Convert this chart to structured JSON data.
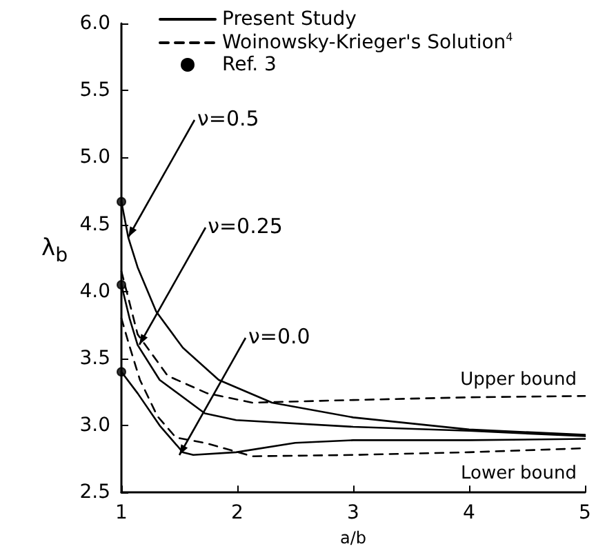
{
  "chart_data": {
    "type": "line",
    "xlabel": "a/b",
    "ylabel": "λ$_{b}$",
    "xlim": [
      1,
      5
    ],
    "xticks": [
      1,
      2,
      3,
      4,
      5
    ],
    "ylim": [
      2.5,
      6
    ],
    "yticks": [
      2.5,
      {
        "value": 3,
        "label": "3.0"
      },
      3.5,
      {
        "value": 4,
        "label": "4.0"
      },
      4.5,
      {
        "value": 5,
        "label": "5.0"
      },
      5.5,
      {
        "value": 6,
        "label": "6.0"
      }
    ],
    "grid": false,
    "legend": "top",
    "series": [
      {
        "name": "Present Study",
        "color": "#000000",
        "line_style": "solid",
        "marker": "none",
        "x": [
          1,
          1.06,
          1.14,
          1.3,
          1.53,
          1.84,
          2.3,
          3,
          4,
          5
        ],
        "values": [
          4.67,
          4.4,
          4.18,
          3.85,
          3.58,
          3.34,
          3.17,
          3.06,
          2.97,
          2.93
        ]
      },
      {
        "color": "#000000",
        "line_style": "solid",
        "marker": "none",
        "x": [
          1,
          1.07,
          1.14,
          1.33,
          1.72,
          1.99,
          3,
          4,
          5
        ],
        "values": [
          4.05,
          3.8,
          3.6,
          3.34,
          3.09,
          3.04,
          2.99,
          2.96,
          2.92
        ]
      },
      {
        "color": "#000000",
        "line_style": "solid",
        "marker": "none",
        "x": [
          1,
          1.14,
          1.33,
          1.53,
          1.62,
          1.99,
          2.5,
          3,
          4,
          5
        ],
        "values": [
          3.4,
          3.24,
          3.0,
          2.8,
          2.78,
          2.8,
          2.87,
          2.89,
          2.89,
          2.9
        ]
      },
      {
        "name": "Woinowsky-Krieger's Solution$^{4}$",
        "color": "#000000",
        "line_style": "dashed",
        "marker": "none",
        "x": [
          1,
          1.06,
          1.14,
          1.4,
          1.74,
          2.13,
          3,
          4,
          5
        ],
        "values": [
          4.15,
          3.95,
          3.68,
          3.37,
          3.24,
          3.17,
          3.19,
          3.21,
          3.22
        ]
      },
      {
        "color": "#000000",
        "line_style": "dashed",
        "marker": "none",
        "x": [
          1,
          1.06,
          1.16,
          1.31,
          1.47,
          1.72,
          2.13,
          3,
          4,
          5
        ],
        "values": [
          3.8,
          3.62,
          3.34,
          3.07,
          2.91,
          2.87,
          2.77,
          2.78,
          2.8,
          2.83
        ]
      },
      {
        "name": "Ref. 3",
        "type": "scatter",
        "color": "#000000",
        "marker": "circle",
        "x": [
          1,
          1,
          1
        ],
        "values": [
          4.67,
          4.05,
          3.4
        ]
      }
    ],
    "annotations": [
      {
        "text": "ν=0.5",
        "x": 1.06,
        "y": 4.4
      },
      {
        "text": "ν=0.25",
        "x": 1.15,
        "y": 3.6
      },
      {
        "text": "ν=0.0",
        "x": 1.5,
        "y": 2.78
      },
      "Upper bound",
      "Lower bound"
    ]
  }
}
